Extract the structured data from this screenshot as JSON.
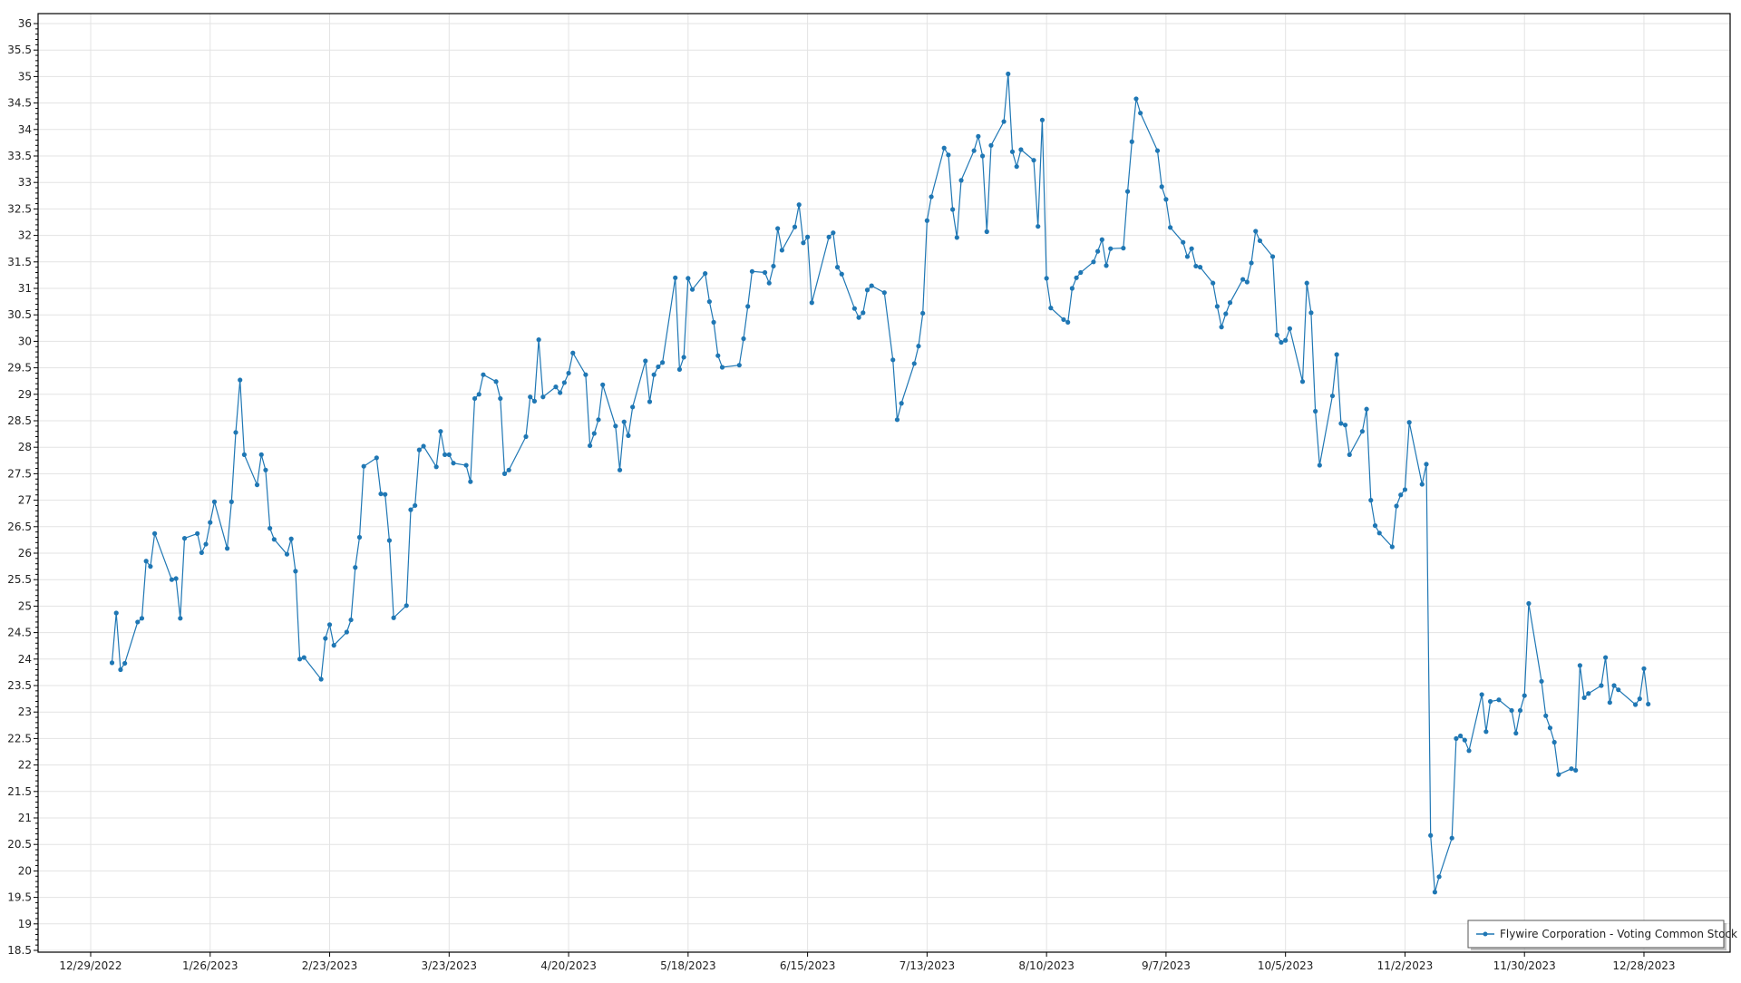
{
  "chart_data": {
    "type": "line",
    "title": "",
    "xlabel": "",
    "ylabel": "",
    "ylim": [
      18.5,
      36
    ],
    "y_tick_step": 0.5,
    "y_minor_step": 0.1,
    "xlim": [
      "2022-12-25",
      "2024-01-22"
    ],
    "x_ticks": [
      "2022-12-29",
      "2023-01-26",
      "2023-02-23",
      "2023-03-23",
      "2023-04-20",
      "2023-05-18",
      "2023-06-15",
      "2023-07-13",
      "2023-08-10",
      "2023-09-07",
      "2023-10-05",
      "2023-11-02",
      "2023-11-30",
      "2023-12-28"
    ],
    "x_tick_labels": [
      "12/29/2022",
      "1/26/2023",
      "2/23/2023",
      "3/23/2023",
      "4/20/2023",
      "5/18/2023",
      "6/15/2023",
      "7/13/2023",
      "8/10/2023",
      "9/7/2023",
      "10/5/2023",
      "11/2/2023",
      "11/30/2023",
      "12/28/2023"
    ],
    "grid": true,
    "legend": {
      "placement": "bottom-right",
      "entries": [
        "Flywire Corporation - Voting Common Stock"
      ]
    },
    "series": [
      {
        "name": "Flywire Corporation - Voting Common Stock",
        "color": "#1f77b4",
        "dates": [
          "2023-01-03",
          "2023-01-04",
          "2023-01-05",
          "2023-01-06",
          "2023-01-09",
          "2023-01-10",
          "2023-01-11",
          "2023-01-12",
          "2023-01-13",
          "2023-01-17",
          "2023-01-18",
          "2023-01-19",
          "2023-01-20",
          "2023-01-23",
          "2023-01-24",
          "2023-01-25",
          "2023-01-26",
          "2023-01-27",
          "2023-01-30",
          "2023-01-31",
          "2023-02-01",
          "2023-02-02",
          "2023-02-03",
          "2023-02-06",
          "2023-02-07",
          "2023-02-08",
          "2023-02-09",
          "2023-02-10",
          "2023-02-13",
          "2023-02-14",
          "2023-02-15",
          "2023-02-16",
          "2023-02-17",
          "2023-02-21",
          "2023-02-22",
          "2023-02-23",
          "2023-02-24",
          "2023-02-27",
          "2023-02-28",
          "2023-03-01",
          "2023-03-02",
          "2023-03-03",
          "2023-03-06",
          "2023-03-07",
          "2023-03-08",
          "2023-03-09",
          "2023-03-10",
          "2023-03-13",
          "2023-03-14",
          "2023-03-15",
          "2023-03-16",
          "2023-03-17",
          "2023-03-20",
          "2023-03-21",
          "2023-03-22",
          "2023-03-23",
          "2023-03-24",
          "2023-03-27",
          "2023-03-28",
          "2023-03-29",
          "2023-03-30",
          "2023-03-31",
          "2023-04-03",
          "2023-04-04",
          "2023-04-05",
          "2023-04-06",
          "2023-04-10",
          "2023-04-11",
          "2023-04-12",
          "2023-04-13",
          "2023-04-14",
          "2023-04-17",
          "2023-04-18",
          "2023-04-19",
          "2023-04-20",
          "2023-04-21",
          "2023-04-24",
          "2023-04-25",
          "2023-04-26",
          "2023-04-27",
          "2023-04-28",
          "2023-05-01",
          "2023-05-02",
          "2023-05-03",
          "2023-05-04",
          "2023-05-05",
          "2023-05-08",
          "2023-05-09",
          "2023-05-10",
          "2023-05-11",
          "2023-05-12",
          "2023-05-15",
          "2023-05-16",
          "2023-05-17",
          "2023-05-18",
          "2023-05-19",
          "2023-05-22",
          "2023-05-23",
          "2023-05-24",
          "2023-05-25",
          "2023-05-26",
          "2023-05-30",
          "2023-05-31",
          "2023-06-01",
          "2023-06-02",
          "2023-06-05",
          "2023-06-06",
          "2023-06-07",
          "2023-06-08",
          "2023-06-09",
          "2023-06-12",
          "2023-06-13",
          "2023-06-14",
          "2023-06-15",
          "2023-06-16",
          "2023-06-20",
          "2023-06-21",
          "2023-06-22",
          "2023-06-23",
          "2023-06-26",
          "2023-06-27",
          "2023-06-28",
          "2023-06-29",
          "2023-06-30",
          "2023-07-03",
          "2023-07-05",
          "2023-07-06",
          "2023-07-07",
          "2023-07-10",
          "2023-07-11",
          "2023-07-12",
          "2023-07-13",
          "2023-07-14",
          "2023-07-17",
          "2023-07-18",
          "2023-07-19",
          "2023-07-20",
          "2023-07-21",
          "2023-07-24",
          "2023-07-25",
          "2023-07-26",
          "2023-07-27",
          "2023-07-28",
          "2023-07-31",
          "2023-08-01",
          "2023-08-02",
          "2023-08-03",
          "2023-08-04",
          "2023-08-07",
          "2023-08-08",
          "2023-08-09",
          "2023-08-10",
          "2023-08-11",
          "2023-08-14",
          "2023-08-15",
          "2023-08-16",
          "2023-08-17",
          "2023-08-18",
          "2023-08-21",
          "2023-08-22",
          "2023-08-23",
          "2023-08-24",
          "2023-08-25",
          "2023-08-28",
          "2023-08-29",
          "2023-08-30",
          "2023-08-31",
          "2023-09-01",
          "2023-09-05",
          "2023-09-06",
          "2023-09-07",
          "2023-09-08",
          "2023-09-11",
          "2023-09-12",
          "2023-09-13",
          "2023-09-14",
          "2023-09-15",
          "2023-09-18",
          "2023-09-19",
          "2023-09-20",
          "2023-09-21",
          "2023-09-22",
          "2023-09-25",
          "2023-09-26",
          "2023-09-27",
          "2023-09-28",
          "2023-09-29",
          "2023-10-02",
          "2023-10-03",
          "2023-10-04",
          "2023-10-05",
          "2023-10-06",
          "2023-10-09",
          "2023-10-10",
          "2023-10-11",
          "2023-10-12",
          "2023-10-13",
          "2023-10-16",
          "2023-10-17",
          "2023-10-18",
          "2023-10-19",
          "2023-10-20",
          "2023-10-23",
          "2023-10-24",
          "2023-10-25",
          "2023-10-26",
          "2023-10-27",
          "2023-10-30",
          "2023-10-31",
          "2023-11-01",
          "2023-11-02",
          "2023-11-03",
          "2023-11-06",
          "2023-11-07",
          "2023-11-08",
          "2023-11-09",
          "2023-11-10",
          "2023-11-13",
          "2023-11-14",
          "2023-11-15",
          "2023-11-16",
          "2023-11-17",
          "2023-11-20",
          "2023-11-21",
          "2023-11-22",
          "2023-11-24",
          "2023-11-27",
          "2023-11-28",
          "2023-11-29",
          "2023-11-30",
          "2023-12-01",
          "2023-12-04",
          "2023-12-05",
          "2023-12-06",
          "2023-12-07",
          "2023-12-08",
          "2023-12-11",
          "2023-12-12",
          "2023-12-13",
          "2023-12-14",
          "2023-12-15",
          "2023-12-18",
          "2023-12-19",
          "2023-12-20",
          "2023-12-21",
          "2023-12-22",
          "2023-12-26",
          "2023-12-27",
          "2023-12-28",
          "2023-12-29"
        ],
        "values": [
          23.93,
          24.87,
          23.8,
          23.92,
          24.7,
          24.77,
          25.85,
          25.75,
          26.37,
          25.5,
          25.52,
          24.77,
          26.28,
          26.37,
          26.01,
          26.17,
          26.58,
          26.97,
          26.09,
          26.97,
          28.28,
          29.27,
          27.86,
          27.29,
          27.86,
          27.57,
          26.47,
          26.26,
          25.98,
          26.27,
          25.66,
          24.0,
          24.03,
          23.62,
          24.39,
          24.65,
          24.26,
          24.51,
          24.74,
          25.73,
          26.3,
          27.64,
          27.8,
          27.12,
          27.11,
          26.24,
          24.78,
          25.01,
          26.82,
          26.9,
          27.95,
          28.02,
          27.63,
          28.3,
          27.86,
          27.86,
          27.7,
          27.66,
          27.35,
          28.92,
          29.0,
          29.37,
          29.24,
          28.92,
          27.5,
          27.57,
          28.2,
          28.95,
          28.87,
          30.03,
          28.95,
          29.14,
          29.03,
          29.22,
          29.4,
          29.78,
          29.37,
          28.03,
          28.26,
          28.52,
          29.18,
          28.4,
          27.57,
          28.48,
          28.22,
          28.76,
          29.63,
          28.86,
          29.37,
          29.52,
          29.6,
          31.2,
          29.47,
          29.7,
          31.19,
          30.98,
          31.28,
          30.75,
          30.36,
          29.73,
          29.51,
          29.55,
          30.05,
          30.66,
          31.32,
          31.3,
          31.1,
          31.42,
          32.13,
          31.72,
          32.16,
          32.58,
          31.86,
          31.97,
          30.73,
          31.97,
          32.05,
          31.4,
          31.27,
          30.62,
          30.45,
          30.54,
          30.97,
          31.05,
          30.92,
          29.65,
          28.52,
          28.83,
          29.58,
          29.91,
          30.53,
          32.28,
          32.73,
          33.65,
          33.52,
          32.49,
          31.96,
          33.04,
          33.6,
          33.87,
          33.5,
          32.07,
          33.7,
          34.15,
          35.05,
          33.58,
          33.3,
          33.62,
          33.42,
          32.17,
          34.18,
          31.19,
          30.63,
          30.41,
          30.36,
          31.0,
          31.2,
          31.3,
          31.5,
          31.7,
          31.92,
          31.43,
          31.75,
          31.76,
          32.83,
          33.77,
          34.58,
          34.31,
          33.6,
          32.92,
          32.68,
          32.15,
          31.87,
          31.6,
          31.75,
          31.42,
          31.4,
          31.1,
          30.66,
          30.27,
          30.52,
          30.73,
          31.17,
          31.12,
          31.48,
          32.08,
          31.9,
          31.6,
          30.12,
          29.98,
          30.02,
          30.24,
          29.24,
          31.1,
          30.54,
          28.68,
          27.66,
          28.97,
          29.75,
          28.45,
          28.42,
          27.86,
          28.3,
          28.72,
          27.0,
          26.52,
          26.38,
          26.12,
          26.89,
          27.1,
          27.2,
          28.47,
          27.3,
          27.68,
          20.67,
          19.6,
          19.89,
          20.62,
          22.5,
          22.55,
          22.47,
          22.27,
          23.33,
          22.63,
          23.2,
          23.23,
          23.03,
          22.6,
          23.03,
          23.31,
          25.05,
          23.58,
          22.93,
          22.7,
          22.43,
          21.82,
          21.93,
          21.9,
          23.88,
          23.27,
          23.35,
          23.5,
          24.03,
          23.18,
          23.5,
          23.42,
          23.14,
          23.25,
          23.82,
          23.15
        ]
      }
    ]
  }
}
